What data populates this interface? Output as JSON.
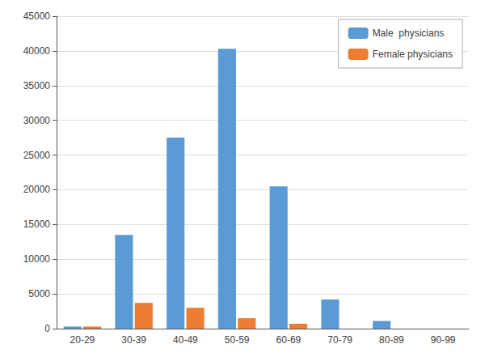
{
  "chart_data": {
    "type": "bar",
    "categories": [
      "20-29",
      "30-39",
      "40-49",
      "50-59",
      "60-69",
      "70-79",
      "80-89",
      "90-99"
    ],
    "series": [
      {
        "name": "Male  physicians",
        "color": "#5B9BD5",
        "values": [
          300,
          13500,
          27500,
          40300,
          20500,
          4200,
          1100,
          0
        ]
      },
      {
        "name": "Female physicians",
        "color": "#ED7D31",
        "values": [
          300,
          3700,
          3000,
          1500,
          700,
          0,
          0,
          0
        ]
      }
    ],
    "ylim": [
      0,
      45000
    ],
    "yticks": [
      0,
      5000,
      10000,
      15000,
      20000,
      25000,
      30000,
      35000,
      40000,
      45000
    ],
    "grid": true,
    "legend": "upper right"
  }
}
